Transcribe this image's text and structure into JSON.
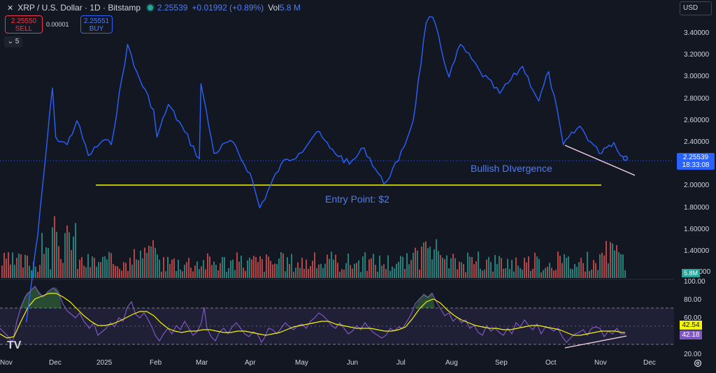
{
  "header": {
    "close_glyph": "✕",
    "title": "XRP / U.S. Dollar · 1D · Bitstamp",
    "last_price": "2.25539",
    "change": "+0.01992 (+0.89%)",
    "vol_label": "Vol",
    "vol_value": "5.8 M"
  },
  "trade": {
    "sell_price": "2.25550",
    "sell_label": "SELL",
    "spread": "0.00001",
    "buy_price": "2.25551",
    "buy_label": "BUY"
  },
  "indicators_toggle": {
    "glyph": "⌄",
    "count": "5"
  },
  "currency": {
    "label": "USD",
    "glyph": "⌄"
  },
  "price_axis": [
    "3.40000",
    "3.20000",
    "3.00000",
    "2.80000",
    "2.60000",
    "2.40000",
    "2.00000",
    "1.80000",
    "1.60000",
    "1.40000"
  ],
  "price_axis_partial": "1.20000",
  "current_price_badge": {
    "price": "2.25539",
    "countdown": "18:33:08",
    "color": "#2962ff"
  },
  "volume_badge": {
    "value": "5.8M",
    "color": "#26a69a"
  },
  "rsi_axis": [
    "100.00",
    "80.00",
    "60.00",
    "20.00"
  ],
  "rsi_badges": {
    "ma": "42.54",
    "rsi": "42.18",
    "ma_color": "#f5f500",
    "rsi_color": "#b39ddb"
  },
  "time_axis": [
    "Nov",
    "Dec",
    "2025",
    "Feb",
    "Mar",
    "Apr",
    "May",
    "Jun",
    "Jul",
    "Aug",
    "Sep",
    "Oct",
    "Nov",
    "Dec"
  ],
  "annotations": {
    "bullish_divergence": "Bullish DIvergence",
    "entry_point": "Entry Point: $2"
  },
  "logo_text": "TV",
  "settings_icon": "gear-icon",
  "colors": {
    "background": "#131722",
    "price_line": "#2962ff",
    "entry_line": "#f5f500",
    "divergence_line": "#f7d4e8",
    "vol_up": "#26a69a",
    "vol_down": "#ef5350",
    "rsi_line": "#7e57c2",
    "rsi_ma": "#f5f500"
  },
  "chart_data": {
    "type": "line",
    "price_series": {
      "dates": [
        "2024-11-15",
        "2024-11-22",
        "2024-12-01",
        "2024-12-03",
        "2024-12-10",
        "2024-12-16",
        "2024-12-23",
        "2025-01-01",
        "2025-01-06",
        "2025-01-16",
        "2025-01-20",
        "2025-02-01",
        "2025-02-03",
        "2025-02-10",
        "2025-02-20",
        "2025-03-01",
        "2025-03-02",
        "2025-03-10",
        "2025-03-20",
        "2025-04-01",
        "2025-04-07",
        "2025-04-20",
        "2025-05-01",
        "2025-05-12",
        "2025-05-20",
        "2025-06-01",
        "2025-06-10",
        "2025-06-22",
        "2025-07-01",
        "2025-07-10",
        "2025-07-18",
        "2025-07-22",
        "2025-08-01",
        "2025-08-08",
        "2025-08-20",
        "2025-09-01",
        "2025-09-15",
        "2025-09-25",
        "2025-10-01",
        "2025-10-08",
        "2025-10-10",
        "2025-10-20",
        "2025-11-01",
        "2025-11-04",
        "2025-11-10",
        "2025-11-14",
        "2025-11-17"
      ],
      "values": [
        0.75,
        1.55,
        2.9,
        2.45,
        2.38,
        2.6,
        2.28,
        2.42,
        2.38,
        3.3,
        3.1,
        2.7,
        2.45,
        2.75,
        2.5,
        2.25,
        2.94,
        2.3,
        2.42,
        2.12,
        1.8,
        2.2,
        2.3,
        2.5,
        2.35,
        2.2,
        2.35,
        2.02,
        2.23,
        2.6,
        3.5,
        3.55,
        3.0,
        3.3,
        3.05,
        2.85,
        3.1,
        2.78,
        3.05,
        2.55,
        2.38,
        2.55,
        2.3,
        2.35,
        2.4,
        2.28,
        2.25539
      ]
    },
    "entry_level": 2.0,
    "y_range": [
      1.2,
      3.6
    ],
    "rsi": {
      "range": [
        20,
        100
      ],
      "levels": [
        70,
        30
      ],
      "last": 42.18,
      "ma_last": 42.54
    },
    "xlabel": "",
    "ylabel": ""
  }
}
